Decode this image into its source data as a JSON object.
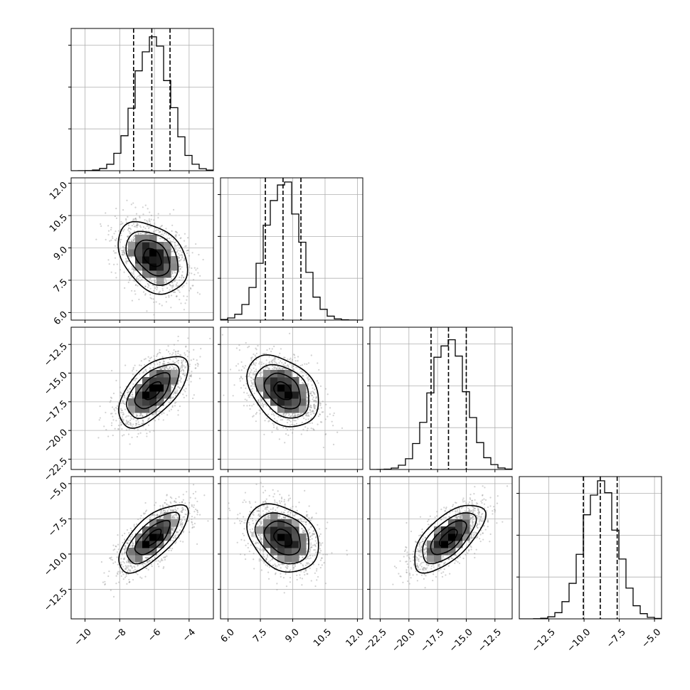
{
  "chart_data": {
    "type": "corner",
    "title": "",
    "grid": true,
    "axis_labels": [
      "",
      "",
      "",
      ""
    ],
    "parameters": [
      {
        "range": [
          -10.8,
          -2.6
        ],
        "ticks": [
          -10,
          -8,
          -6,
          -4
        ],
        "tick_labels": [
          "−10",
          "−8",
          "−6",
          "−4"
        ],
        "mean": -6.1,
        "sigma": 1.0,
        "quantiles": [
          -7.2,
          -6.15,
          -5.1
        ],
        "hist_peak": 0.16
      },
      {
        "range": [
          5.65,
          12.25
        ],
        "ticks": [
          6.0,
          7.5,
          9.0,
          10.5,
          12.0
        ],
        "tick_labels": [
          "6.0",
          "7.5",
          "9.0",
          "10.5",
          "12.0"
        ],
        "mean": 8.55,
        "sigma": 0.83,
        "quantiles": [
          7.73,
          8.55,
          9.38
        ],
        "hist_peak": 0.165
      },
      {
        "range": [
          -23.4,
          -11.0
        ],
        "ticks": [
          -22.5,
          -20.0,
          -17.5,
          -15.0,
          -12.5
        ],
        "tick_labels": [
          "−22.5",
          "−20.0",
          "−17.5",
          "−15.0",
          "−12.5"
        ],
        "mean": -16.55,
        "sigma": 1.55,
        "quantiles": [
          -18.07,
          -16.55,
          -15.0
        ],
        "hist_peak": 0.155
      },
      {
        "range": [
          -14.6,
          -4.5
        ],
        "ticks": [
          -12.5,
          -10.0,
          -7.5,
          -5.0
        ],
        "tick_labels": [
          "−12.5",
          "−10.0",
          "−7.5",
          "−5.0"
        ],
        "mean": -8.85,
        "sigma": 1.2,
        "quantiles": [
          -10.05,
          -8.85,
          -7.65
        ],
        "hist_peak": 0.165
      }
    ],
    "correlations": [
      {
        "pair": [
          0,
          1
        ],
        "rho": -0.35
      },
      {
        "pair": [
          0,
          2
        ],
        "rho": 0.6
      },
      {
        "pair": [
          0,
          3
        ],
        "rho": 0.7
      },
      {
        "pair": [
          1,
          2
        ],
        "rho": -0.35
      },
      {
        "pair": [
          1,
          3
        ],
        "rho": -0.3
      },
      {
        "pair": [
          2,
          3
        ],
        "rho": 0.65
      }
    ],
    "contour_levels_sigma": [
      0.5,
      1.0,
      1.5,
      2.0
    ],
    "colors": {
      "line": "#000000",
      "grid": "#b0b0b0",
      "points": "#9a9a9a"
    }
  }
}
